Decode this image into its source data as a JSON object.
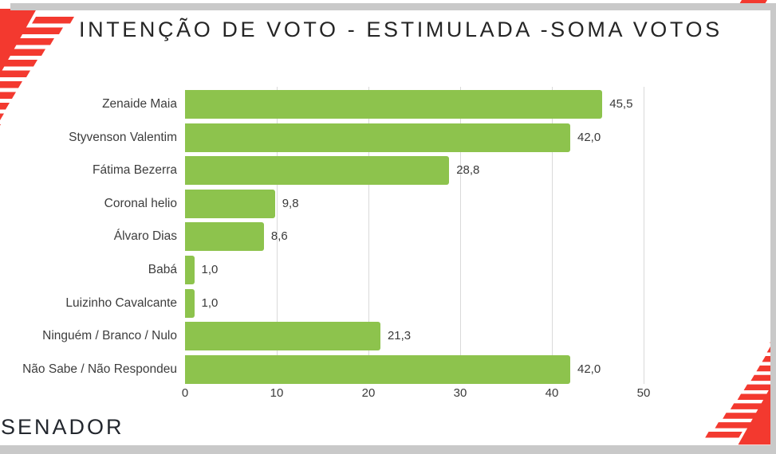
{
  "title": "INTENÇÃO DE VOTO - ESTIMULADA -SOMA VOTOS",
  "footer": {
    "label": "SENADOR"
  },
  "colors": {
    "bar_green": "#8dc34d",
    "accent_red": "#f3392f",
    "grid_gray": "#d9d9d9",
    "edge_gray": "#c9c9c9",
    "text_dark": "#252525"
  },
  "chart_data": {
    "type": "bar",
    "orientation": "horizontal",
    "title": "INTENÇÃO DE VOTO - ESTIMULADA -SOMA VOTOS",
    "categories": [
      "Zenaide Maia",
      "Styvenson Valentim",
      "Fátima Bezerra",
      "Coronal helio",
      "Álvaro Dias",
      "Babá",
      "Luizinho Cavalcante",
      "Ninguém / Branco / Nulo",
      "Não Sabe / Não Respondeu"
    ],
    "values": [
      45.5,
      42.0,
      28.8,
      9.8,
      8.6,
      1.0,
      1.0,
      21.3,
      42.0
    ],
    "value_labels": [
      "45,5",
      "42,0",
      "28,8",
      "9,8",
      "8,6",
      "1,0",
      "1,0",
      "21,3",
      "42,0"
    ],
    "xlim": [
      0,
      50
    ],
    "x_ticks": [
      0,
      10,
      20,
      30,
      40,
      50
    ],
    "x_tick_labels": [
      "0",
      "10",
      "20",
      "30",
      "40",
      "50"
    ],
    "grid": true,
    "legend": false,
    "bar_color": "#8dc34d"
  }
}
